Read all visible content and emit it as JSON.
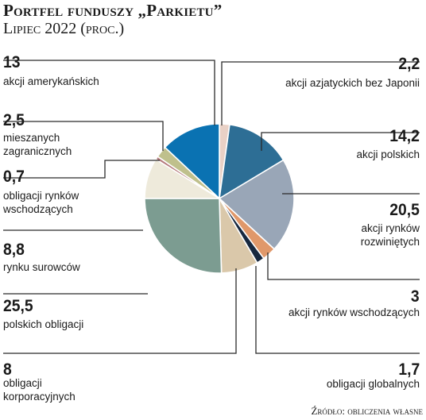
{
  "title": "Portfel funduszy „Parkietu”",
  "subtitle": "Lipiec 2022 (proc.)",
  "source": "Źródło: obliczenia własne",
  "chart_data": {
    "type": "pie",
    "title": "Portfel funduszy „Parkietu”",
    "subtitle": "Lipiec 2022 (proc.)",
    "unit": "proc.",
    "slices": [
      {
        "label": "akcji azjatyckich bez Japonii",
        "value": 2.2,
        "value_text": "2,2",
        "color": "#e9d1c6"
      },
      {
        "label": "akcji polskich",
        "value": 14.2,
        "value_text": "14,2",
        "color": "#2d6e95"
      },
      {
        "label": "akcji rynków rozwiniętych",
        "value": 20.5,
        "value_text": "20,5",
        "color": "#99a6b7"
      },
      {
        "label": "akcji rynków wschodzących",
        "value": 3,
        "value_text": "3",
        "color": "#e0986a"
      },
      {
        "label": "obligacji globalnych",
        "value": 1.7,
        "value_text": "1,7",
        "color": "#17283f"
      },
      {
        "label": "obligacji korporacyjnych",
        "value": 8,
        "value_text": "8",
        "color": "#dac8aa"
      },
      {
        "label": "polskich obligacji",
        "value": 25.5,
        "value_text": "25,5",
        "color": "#7c9c91"
      },
      {
        "label": "rynku surowców",
        "value": 8.8,
        "value_text": "8,8",
        "color": "#eeeadb"
      },
      {
        "label": "obligacji rynków wschodzących",
        "value": 0.7,
        "value_text": "0,7",
        "color": "#b57a7c"
      },
      {
        "label": "mieszanych zagranicznych",
        "value": 2.5,
        "value_text": "2,5",
        "color": "#bfc08c"
      },
      {
        "label": "akcji amerykańskich",
        "value": 13,
        "value_text": "13",
        "color": "#0a72b2"
      }
    ]
  }
}
